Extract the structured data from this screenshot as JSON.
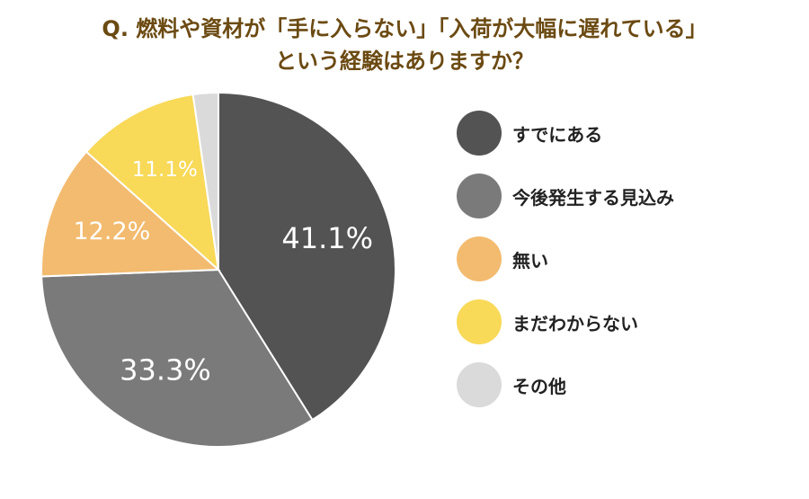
{
  "chart_data": {
    "type": "pie",
    "title_lines": [
      "Q. 燃料や資材が「手に入らない」「入荷が大幅に遅れている」",
      "という経験はありますか？"
    ],
    "categories": [
      "すでにある",
      "今後発生する見込み",
      "無い",
      "まだわからない",
      "その他"
    ],
    "values": [
      41.1,
      33.3,
      12.2,
      11.1,
      2.3
    ],
    "labels": [
      "41.1%",
      "33.3%",
      "12.2%",
      "11.1%",
      ""
    ],
    "colors": [
      "#535353",
      "#7a7a7a",
      "#f2bb6f",
      "#f8d958",
      "#dadada"
    ],
    "legend_position": "right"
  }
}
